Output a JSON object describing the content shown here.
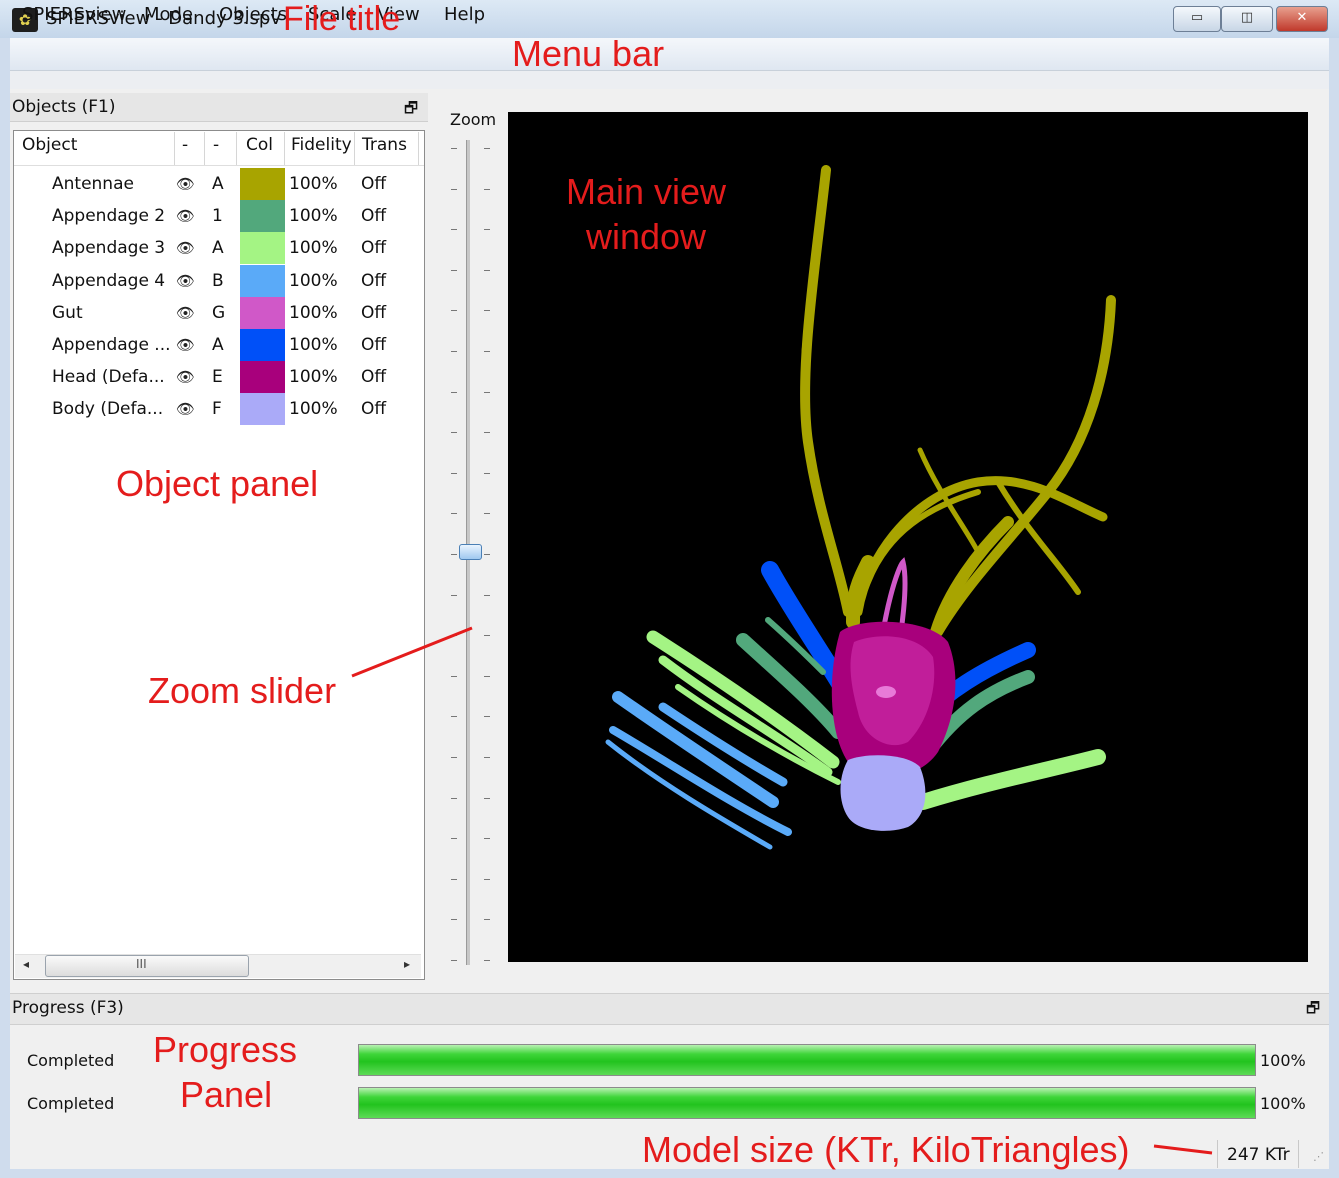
{
  "window": {
    "title": "SPIERSview - Dandy 3.spv",
    "minimize_glyph": "▭",
    "maximize_glyph": "◫",
    "close_glyph": "✕"
  },
  "menu": [
    "SPIERSview",
    "Mode",
    "Objects",
    "Scale",
    "View",
    "Help"
  ],
  "objects_panel": {
    "title": "Objects (F1)",
    "float_glyph": "🗗",
    "columns": [
      "Object",
      "-",
      "-",
      "Col",
      "Fidelity",
      "Trans"
    ],
    "rows": [
      {
        "name": "Antennae",
        "key": "A",
        "color": "#a8a400",
        "fidelity": "100%",
        "trans": "Off"
      },
      {
        "name": "Appendage 2",
        "key": "1",
        "color": "#52a87c",
        "fidelity": "100%",
        "trans": "Off"
      },
      {
        "name": "Appendage 3",
        "key": "A",
        "color": "#a4f484",
        "fidelity": "100%",
        "trans": "Off"
      },
      {
        "name": "Appendage 4",
        "key": "B",
        "color": "#5aaaf8",
        "fidelity": "100%",
        "trans": "Off"
      },
      {
        "name": "Gut",
        "key": "G",
        "color": "#d058c8",
        "fidelity": "100%",
        "trans": "Off"
      },
      {
        "name": "Appendage ...",
        "key": "A",
        "color": "#0050f8",
        "fidelity": "100%",
        "trans": "Off"
      },
      {
        "name": "Head (Defa...",
        "key": "E",
        "color": "#a8007c",
        "fidelity": "100%",
        "trans": "Off"
      },
      {
        "name": "Body (Defa...",
        "key": "F",
        "color": "#aaaaf8",
        "fidelity": "100%",
        "trans": "Off"
      }
    ],
    "visibility_icon": "eye-icon",
    "scroll_grip": "III",
    "scroll_left": "◂",
    "scroll_right": "▸"
  },
  "zoom": {
    "label": "Zoom",
    "value_fraction": 0.5
  },
  "progress_panel": {
    "title": "Progress (F3)",
    "float_glyph": "🗗",
    "bars": [
      {
        "label": "Completed",
        "percent": 100,
        "percent_label": "100%"
      },
      {
        "label": "Completed",
        "percent": 100,
        "percent_label": "100%"
      }
    ]
  },
  "status": {
    "model_size": "247 KTr",
    "grip": "⋰"
  },
  "annotations": {
    "file_title": "File title",
    "menu_bar": "Menu bar",
    "main_view_1": "Main view",
    "main_view_2": "window",
    "object_panel": "Object panel",
    "zoom_slider": "Zoom slider",
    "progress_1": "Progress",
    "progress_2": "Panel",
    "model_size": "Model size (KTr, KiloTriangles)"
  },
  "colors": {
    "annotation": "#e41c1c",
    "progress_fill": "#22c31e",
    "view_background": "#000000"
  }
}
